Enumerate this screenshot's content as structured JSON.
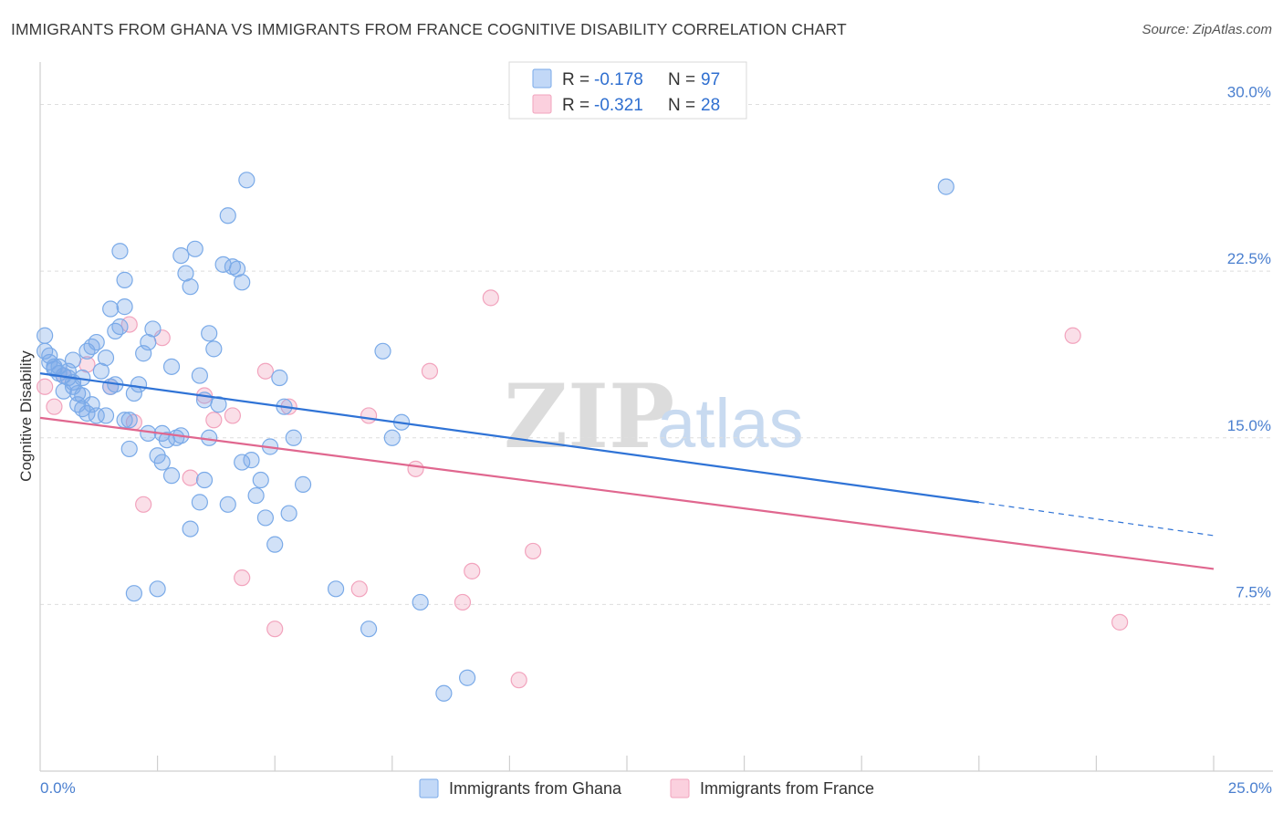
{
  "title": "IMMIGRANTS FROM GHANA VS IMMIGRANTS FROM FRANCE COGNITIVE DISABILITY CORRELATION CHART",
  "source": "Source: ZipAtlas.com",
  "watermark": {
    "zip": "ZIP",
    "atlas": "atlas"
  },
  "colors": {
    "ghana": "#7aaae8",
    "ghana_line": "#2f73d6",
    "france": "#f2a3bd",
    "france_line": "#e0678f",
    "tick_text": "#4a7fcf"
  },
  "legend": {
    "ghana": {
      "r_label": "R = ",
      "r_value": "-0.178",
      "n_label": "N = ",
      "n_value": "97"
    },
    "france": {
      "r_label": "R = ",
      "r_value": "-0.321",
      "n_label": "N = ",
      "n_value": "28"
    }
  },
  "chart_data": {
    "type": "scatter",
    "title": "IMMIGRANTS FROM GHANA VS IMMIGRANTS FROM FRANCE COGNITIVE DISABILITY CORRELATION CHART",
    "xlabel": "",
    "ylabel": "Cognitive Disability",
    "xlim": [
      0,
      25
    ],
    "ylim": [
      0,
      31.5
    ],
    "x_tick_labels": [
      "0.0%",
      "25.0%"
    ],
    "y_ticks": [
      7.5,
      15.0,
      22.5,
      30.0
    ],
    "y_tick_labels": [
      "7.5%",
      "15.0%",
      "22.5%",
      "30.0%"
    ],
    "series": [
      {
        "name": "Immigrants from Ghana",
        "trend": {
          "x0": 0,
          "y0": 17.9,
          "x1": 20,
          "y1": 12.1,
          "dashed_to_x": 25,
          "dashed_to_y": 10.6
        },
        "points": [
          [
            0.1,
            19.6
          ],
          [
            0.1,
            18.9
          ],
          [
            0.2,
            18.7
          ],
          [
            0.2,
            18.4
          ],
          [
            0.3,
            18.2
          ],
          [
            0.3,
            18.1
          ],
          [
            0.4,
            17.9
          ],
          [
            0.4,
            18.2
          ],
          [
            0.5,
            17.1
          ],
          [
            0.5,
            17.8
          ],
          [
            0.6,
            18.0
          ],
          [
            0.6,
            17.7
          ],
          [
            0.7,
            18.5
          ],
          [
            0.7,
            17.5
          ],
          [
            0.8,
            17.0
          ],
          [
            0.8,
            16.5
          ],
          [
            0.9,
            17.7
          ],
          [
            0.9,
            16.9
          ],
          [
            1.0,
            18.9
          ],
          [
            1.0,
            16.1
          ],
          [
            1.1,
            16.5
          ],
          [
            1.1,
            19.1
          ],
          [
            1.2,
            19.3
          ],
          [
            1.3,
            18.0
          ],
          [
            1.4,
            16.0
          ],
          [
            1.5,
            17.3
          ],
          [
            1.6,
            19.8
          ],
          [
            1.7,
            20.0
          ],
          [
            1.8,
            20.9
          ],
          [
            1.9,
            15.8
          ],
          [
            2.0,
            17.0
          ],
          [
            2.1,
            17.4
          ],
          [
            2.2,
            18.8
          ],
          [
            2.3,
            19.3
          ],
          [
            2.4,
            19.9
          ],
          [
            2.5,
            14.2
          ],
          [
            2.6,
            15.2
          ],
          [
            2.7,
            14.9
          ],
          [
            2.8,
            18.2
          ],
          [
            2.9,
            15.0
          ],
          [
            3.0,
            23.2
          ],
          [
            3.1,
            22.4
          ],
          [
            3.2,
            21.8
          ],
          [
            3.3,
            23.5
          ],
          [
            3.4,
            17.8
          ],
          [
            3.5,
            16.7
          ],
          [
            3.6,
            19.7
          ],
          [
            3.7,
            19.0
          ],
          [
            3.8,
            16.5
          ],
          [
            3.9,
            22.8
          ],
          [
            4.0,
            25.0
          ],
          [
            4.1,
            22.7
          ],
          [
            4.2,
            22.6
          ],
          [
            4.3,
            22.0
          ],
          [
            4.4,
            26.6
          ],
          [
            4.5,
            14.0
          ],
          [
            4.6,
            12.4
          ],
          [
            4.7,
            13.1
          ],
          [
            4.8,
            11.4
          ],
          [
            4.9,
            14.6
          ],
          [
            5.0,
            10.2
          ],
          [
            5.1,
            17.7
          ],
          [
            5.2,
            16.4
          ],
          [
            5.3,
            11.6
          ],
          [
            5.4,
            15.0
          ],
          [
            1.5,
            20.8
          ],
          [
            1.7,
            23.4
          ],
          [
            1.8,
            22.1
          ],
          [
            2.0,
            8.0
          ],
          [
            2.5,
            8.2
          ],
          [
            3.0,
            15.1
          ],
          [
            3.2,
            10.9
          ],
          [
            3.5,
            13.1
          ],
          [
            3.6,
            15.0
          ],
          [
            4.0,
            12.0
          ],
          [
            2.8,
            13.3
          ],
          [
            1.8,
            15.8
          ],
          [
            2.3,
            15.2
          ],
          [
            1.9,
            14.5
          ],
          [
            0.7,
            17.3
          ],
          [
            1.2,
            16.0
          ],
          [
            1.4,
            18.6
          ],
          [
            6.3,
            8.2
          ],
          [
            7.0,
            6.4
          ],
          [
            7.3,
            18.9
          ],
          [
            7.5,
            15.0
          ],
          [
            7.7,
            15.7
          ],
          [
            8.1,
            7.6
          ],
          [
            8.6,
            3.5
          ],
          [
            9.1,
            4.2
          ],
          [
            19.3,
            26.3
          ],
          [
            2.6,
            13.9
          ],
          [
            3.4,
            12.1
          ],
          [
            1.6,
            17.4
          ],
          [
            0.9,
            16.3
          ],
          [
            4.3,
            13.9
          ],
          [
            5.6,
            12.9
          ]
        ]
      },
      {
        "name": "Immigrants from France",
        "trend": {
          "x0": 0,
          "y0": 15.9,
          "x1": 25,
          "y1": 9.1
        },
        "points": [
          [
            0.1,
            17.3
          ],
          [
            0.3,
            16.4
          ],
          [
            0.5,
            17.8
          ],
          [
            1.0,
            18.3
          ],
          [
            1.5,
            17.3
          ],
          [
            2.0,
            15.7
          ],
          [
            2.2,
            12.0
          ],
          [
            2.6,
            19.5
          ],
          [
            3.2,
            13.2
          ],
          [
            3.5,
            16.9
          ],
          [
            3.7,
            15.8
          ],
          [
            4.1,
            16.0
          ],
          [
            4.3,
            8.7
          ],
          [
            4.8,
            18.0
          ],
          [
            5.0,
            6.4
          ],
          [
            5.3,
            16.4
          ],
          [
            6.8,
            8.2
          ],
          [
            7.0,
            16.0
          ],
          [
            8.0,
            13.6
          ],
          [
            8.3,
            18.0
          ],
          [
            9.0,
            7.6
          ],
          [
            9.2,
            9.0
          ],
          [
            9.6,
            21.3
          ],
          [
            10.2,
            4.1
          ],
          [
            10.5,
            9.9
          ],
          [
            22.0,
            19.6
          ],
          [
            23.0,
            6.7
          ],
          [
            1.9,
            20.1
          ]
        ]
      }
    ]
  },
  "bottom_legend": {
    "ghana": "Immigrants from Ghana",
    "france": "Immigrants from France"
  }
}
